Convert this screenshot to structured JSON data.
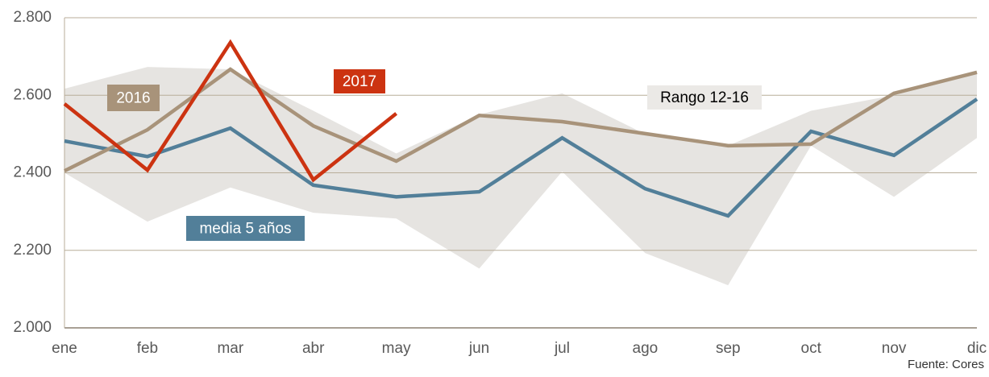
{
  "chart_data": {
    "type": "line",
    "categories": [
      "ene",
      "feb",
      "mar",
      "abr",
      "may",
      "jun",
      "jul",
      "ago",
      "sep",
      "oct",
      "nov",
      "dic"
    ],
    "band": {
      "name": "Rango 12-16",
      "color": "#e6e4e1",
      "upper": [
        2617,
        2673,
        2667,
        2560,
        2450,
        2550,
        2605,
        2500,
        2470,
        2560,
        2600,
        2660
      ],
      "lower": [
        2400,
        2274,
        2362,
        2297,
        2282,
        2153,
        2403,
        2193,
        2110,
        2470,
        2338,
        2490
      ]
    },
    "series": [
      {
        "name": "media 5 años",
        "color": "#527f99",
        "values": [
          2482,
          2442,
          2515,
          2368,
          2338,
          2351,
          2490,
          2359,
          2289,
          2507,
          2445,
          2590
        ]
      },
      {
        "name": "2016",
        "color": "#a8937a",
        "values": [
          2405,
          2511,
          2667,
          2521,
          2430,
          2548,
          2532,
          2501,
          2470,
          2474,
          2605,
          2659
        ]
      },
      {
        "name": "2017",
        "color": "#cc3311",
        "values": [
          2578,
          2407,
          2736,
          2382,
          2553,
          null,
          null,
          null,
          null,
          null,
          null,
          null
        ]
      }
    ],
    "ylim": [
      2000,
      2800
    ],
    "yticks": [
      {
        "value": 2000,
        "label": "2.000"
      },
      {
        "value": 2200,
        "label": "2.200"
      },
      {
        "value": 2400,
        "label": "2.400"
      },
      {
        "value": 2600,
        "label": "2.600"
      },
      {
        "value": 2800,
        "label": "2.800"
      }
    ],
    "grid": true,
    "source": "Fuente: Cores"
  }
}
